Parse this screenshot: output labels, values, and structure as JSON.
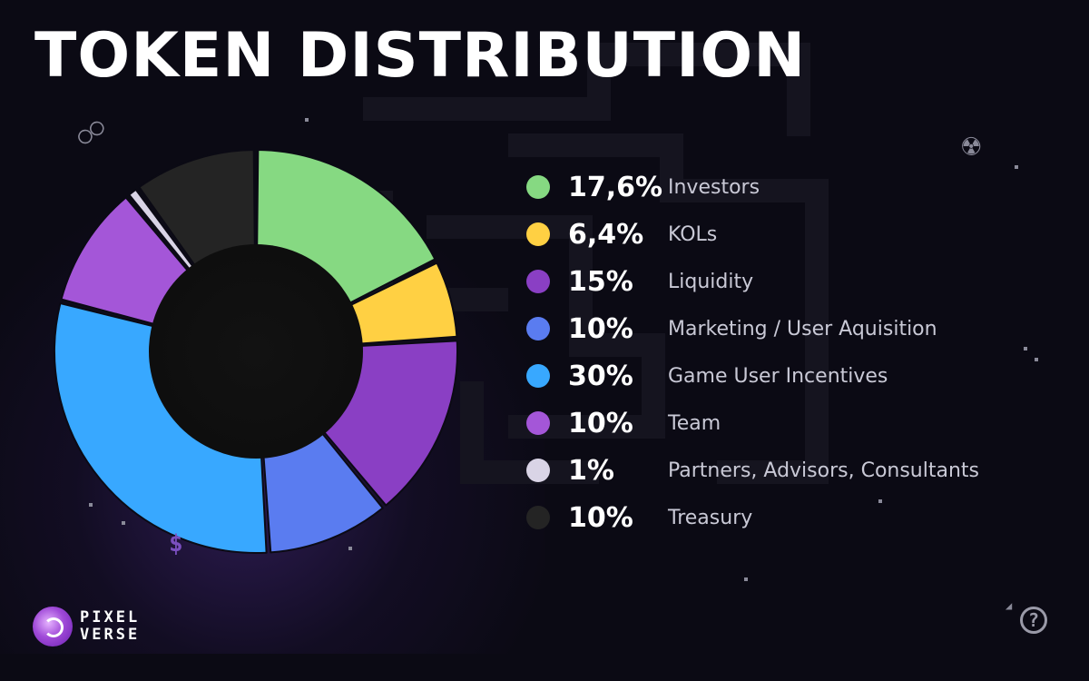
{
  "title": "TOKEN DISTRIBUTION",
  "brand": {
    "line1": "PIXEL",
    "line2": "VERSE"
  },
  "chart_data": {
    "type": "pie",
    "variant": "donut",
    "title": "TOKEN DISTRIBUTION",
    "legend_position": "right",
    "slices": [
      {
        "label": "Investors",
        "display": "17,6%",
        "value": 17.6,
        "color": "#86d982"
      },
      {
        "label": "KOLs",
        "display": "6,4%",
        "value": 6.4,
        "color": "#ffd043"
      },
      {
        "label": "Liquidity",
        "display": "15%",
        "value": 15,
        "color": "#8a3fc4"
      },
      {
        "label": "Marketing / User Aquisition",
        "display": "10%",
        "value": 10,
        "color": "#5a7cf0"
      },
      {
        "label": "Game User Incentives",
        "display": "30%",
        "value": 30,
        "color": "#38a8ff"
      },
      {
        "label": "Team",
        "display": "10%",
        "value": 10,
        "color": "#a456d8"
      },
      {
        "label": "Partners, Advisors, Consultants",
        "display": "1%",
        "value": 1,
        "color": "#d9d4e6"
      },
      {
        "label": "Treasury",
        "display": "10%",
        "value": 10,
        "color": "#242424"
      }
    ]
  },
  "icons": {
    "glasses": "pixel-glasses-icon",
    "radiation": "radiation-icon",
    "dollar": "dollar-icon",
    "help": "question-icon",
    "logo": "pixelverse-logo-icon"
  }
}
